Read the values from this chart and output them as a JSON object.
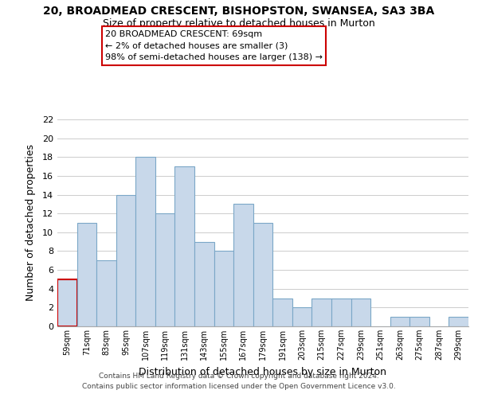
{
  "title": "20, BROADMEAD CRESCENT, BISHOPSTON, SWANSEA, SA3 3BA",
  "subtitle": "Size of property relative to detached houses in Murton",
  "xlabel": "Distribution of detached houses by size in Murton",
  "ylabel": "Number of detached properties",
  "bar_labels": [
    "59sqm",
    "71sqm",
    "83sqm",
    "95sqm",
    "107sqm",
    "119sqm",
    "131sqm",
    "143sqm",
    "155sqm",
    "167sqm",
    "179sqm",
    "191sqm",
    "203sqm",
    "215sqm",
    "227sqm",
    "239sqm",
    "251sqm",
    "263sqm",
    "275sqm",
    "287sqm",
    "299sqm"
  ],
  "bar_values": [
    5,
    11,
    7,
    14,
    18,
    12,
    17,
    9,
    8,
    13,
    11,
    3,
    2,
    3,
    3,
    3,
    0,
    1,
    1,
    0,
    1
  ],
  "bar_color": "#c8d8ea",
  "highlight_bar_index": 0,
  "highlight_bar_edge_color": "#cc0000",
  "normal_bar_edge_color": "#7ba7c7",
  "annotation_text": "20 BROADMEAD CRESCENT: 69sqm\n← 2% of detached houses are smaller (3)\n98% of semi-detached houses are larger (138) →",
  "annotation_box_edge_color": "#cc0000",
  "annotation_box_face_color": "#ffffff",
  "ylim": [
    0,
    22
  ],
  "yticks": [
    0,
    2,
    4,
    6,
    8,
    10,
    12,
    14,
    16,
    18,
    20,
    22
  ],
  "footer1": "Contains HM Land Registry data © Crown copyright and database right 2024.",
  "footer2": "Contains public sector information licensed under the Open Government Licence v3.0.",
  "bg_color": "#ffffff",
  "grid_color": "#cccccc"
}
